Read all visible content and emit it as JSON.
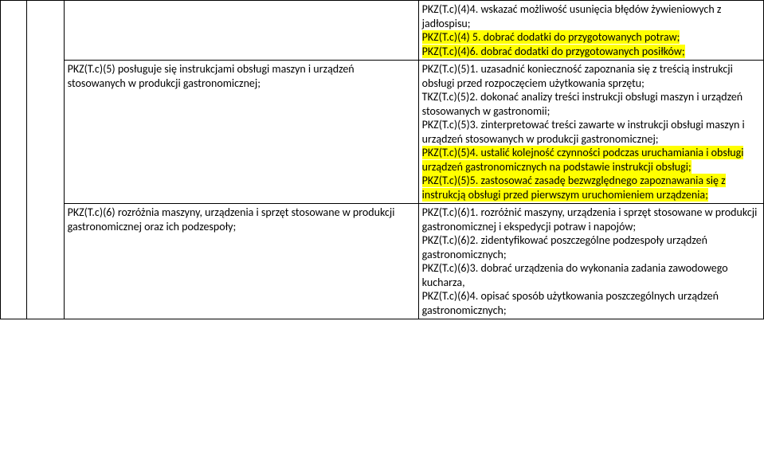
{
  "rows": [
    {
      "left": "",
      "right_lines": [
        {
          "text": "PKZ(T.c)(4)4. wskazać możliwość usunięcia błędów żywieniowych z jadłospisu;",
          "hl": false
        },
        {
          "text": "PKZ(T.c)(4) 5. dobrać dodatki do przygotowanych potraw;",
          "hl": true
        },
        {
          "text": "PKZ(T.c)(4)6. dobrać dodatki do przygotowanych posiłków;",
          "hl": true
        }
      ]
    },
    {
      "left": "PKZ(T.c)(5) posługuje się instrukcjami obsługi maszyn i urządzeń stosowanych w produkcji gastronomicznej;",
      "right_lines": [
        {
          "text": "PKZ(T.c)(5)1. uzasadnić konieczność zapoznania się z treścią instrukcji obsługi przed rozpoczęciem użytkowania sprzętu;",
          "hl": false
        },
        {
          "text": "TKZ(T.c)(5)2. dokonać analizy treści instrukcji obsługi maszyn i urządzeń stosowanych w gastronomii;",
          "hl": false
        },
        {
          "text": "PKZ(T.c)(5)3. zinterpretować treści zawarte w instrukcji obsługi maszyn i urządzeń stosowanych w produkcji gastronomicznej;",
          "hl": false
        },
        {
          "text": "PKZ(T.c)(5)4. ustalić kolejność czynności podczas uruchamiania i obsługi urządzeń gastronomicznych na podstawie instrukcji obsługi;",
          "hl": true
        },
        {
          "text": "PKZ(T.c)(5)5. zastosować zasadę bezwzględnego zapoznawania się z instrukcją obsługi przed pierwszym uruchomieniem urządzenia;",
          "hl": true
        }
      ]
    },
    {
      "left": "PKZ(T.c)(6) rozróżnia maszyny, urządzenia i sprzęt stosowane w produkcji gastronomicznej oraz ich podzespoły;",
      "right_lines": [
        {
          "text": "PKZ(T.c)(6)1. rozróżnić maszyny, urządzenia i sprzęt stosowane w produkcji gastronomicznej i ekspedycji potraw i napojów;",
          "hl": false
        },
        {
          "text": "PKZ(T.c)(6)2. zidentyfikować poszczególne podzespoły urządzeń gastronomicznych;",
          "hl": false
        },
        {
          "text": "PKZ(T.c)(6)3. dobrać urządzenia do wykonania zadania zawodowego kucharza,",
          "hl": false
        },
        {
          "text": "PKZ(T.c)(6)4. opisać sposób użytkowania poszczególnych urządzeń gastronomicznych;",
          "hl": false
        }
      ]
    }
  ]
}
